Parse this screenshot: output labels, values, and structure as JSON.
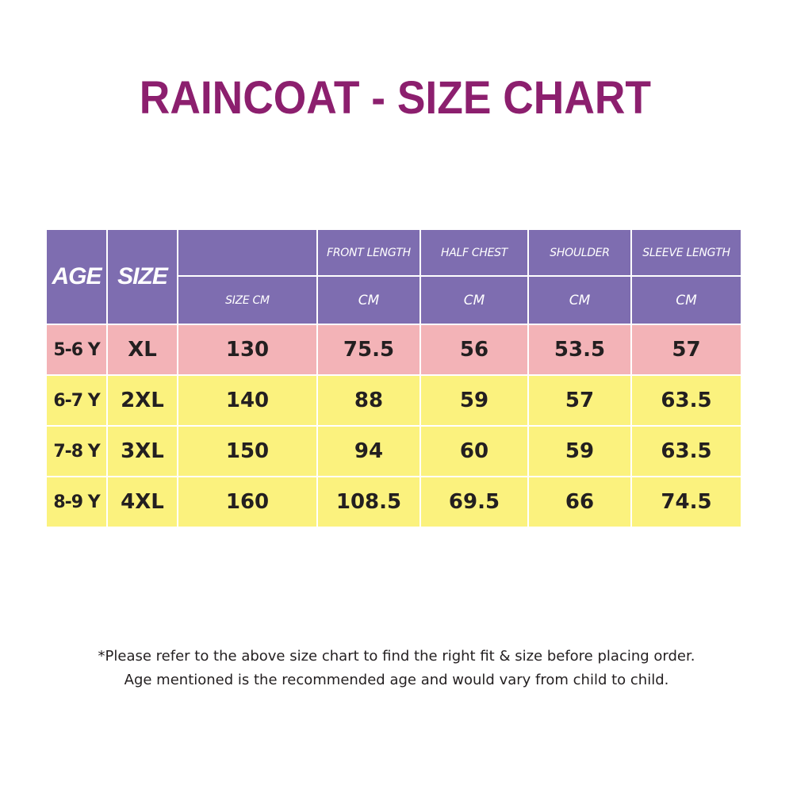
{
  "title": "RAINCOAT - SIZE CHART",
  "table": {
    "headers": {
      "age": "AGE",
      "size": "SIZE",
      "size_cm": "SIZE CM",
      "front_length": "FRONT LENGTH",
      "half_chest": "HALF CHEST",
      "shoulder": "SHOULDER",
      "sleeve_length": "SLEEVE LENGTH",
      "unit": "CM"
    },
    "rows": [
      {
        "age": "5-6 Y",
        "size": "XL",
        "size_cm": "130",
        "front_length": "75.5",
        "half_chest": "56",
        "shoulder": "53.5",
        "sleeve_length": "57"
      },
      {
        "age": "6-7 Y",
        "size": "2XL",
        "size_cm": "140",
        "front_length": "88",
        "half_chest": "59",
        "shoulder": "57",
        "sleeve_length": "63.5"
      },
      {
        "age": "7-8 Y",
        "size": "3XL",
        "size_cm": "150",
        "front_length": "94",
        "half_chest": "60",
        "shoulder": "59",
        "sleeve_length": "63.5"
      },
      {
        "age": "8-9 Y",
        "size": "4XL",
        "size_cm": "160",
        "front_length": "108.5",
        "half_chest": "69.5",
        "shoulder": "66",
        "sleeve_length": "74.5"
      }
    ]
  },
  "notes": {
    "line1": "*Please refer to the above size chart to find the right fit & size before placing order.",
    "line2": "Age mentioned is the recommended age and would vary from child to child."
  },
  "colors": {
    "title": "#8c1f6e",
    "header_bg": "#7e6db0",
    "first_row_bg": "#f3b3b7",
    "other_rows_bg": "#fbf27e"
  }
}
